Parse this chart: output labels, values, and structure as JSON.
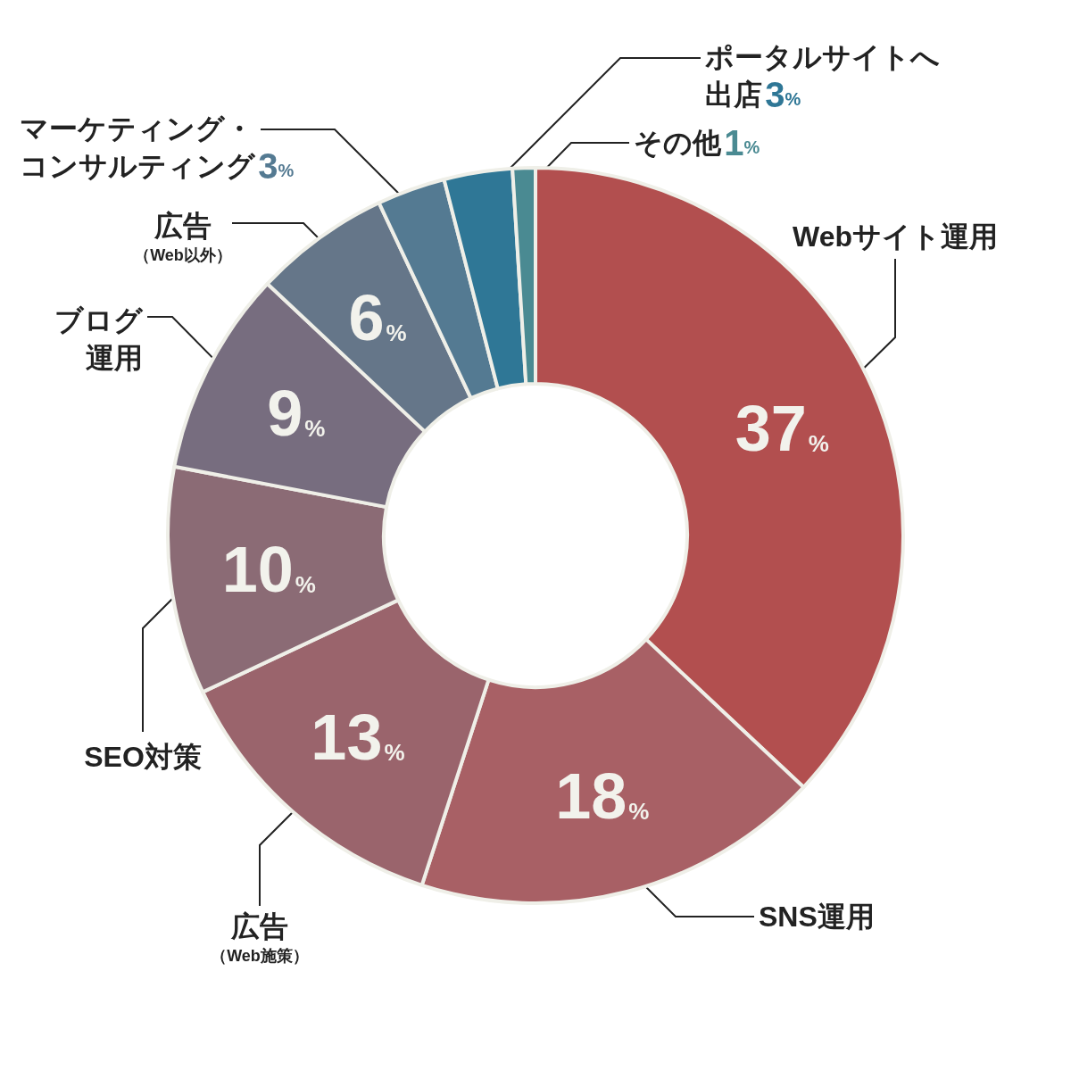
{
  "chart_data": {
    "type": "donut",
    "categories": [
      "Webサイト運用",
      "SNS運用",
      "広告（Web施策）",
      "SEO対策",
      "ブログ運用",
      "広告（Web以外）",
      "マーケティング・コンサルティング",
      "ポータルサイトへ出店",
      "その他"
    ],
    "values": [
      37,
      18,
      13,
      10,
      9,
      6,
      3,
      3,
      1
    ],
    "value_labels": [
      "37%",
      "18%",
      "13%",
      "10%",
      "9%",
      "6%",
      "3%",
      "3%",
      "1%"
    ],
    "colors": [
      "#b24f4f",
      "#a86065",
      "#9a646c",
      "#8b6b75",
      "#776d7f",
      "#657689",
      "#547a92",
      "#2f7796",
      "#4a8a92"
    ],
    "legend": false
  }
}
